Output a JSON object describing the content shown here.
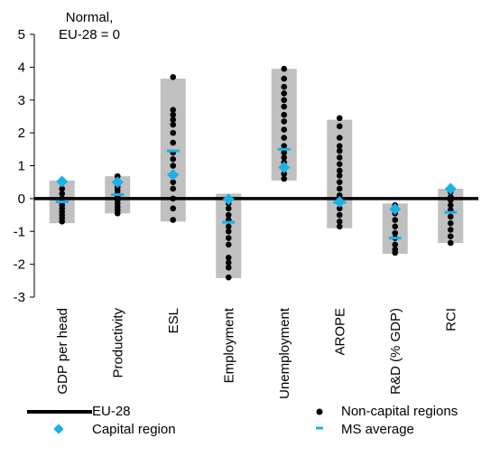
{
  "chart_data": {
    "type": "scatter",
    "title": "",
    "unit_label": [
      "Normal,",
      "EU-28 = 0"
    ],
    "ylim": [
      -3,
      5
    ],
    "yticks": [
      -3,
      -2,
      -1,
      0,
      1,
      2,
      3,
      4,
      5
    ],
    "categories": [
      "GDP per head",
      "Productivity",
      "ESL",
      "Employment",
      "Unemployment",
      "AROPE",
      "R&D (% GDP)",
      "RCI"
    ],
    "range": [
      {
        "min": -0.75,
        "max": 0.55
      },
      {
        "min": -0.45,
        "max": 0.68
      },
      {
        "min": -0.7,
        "max": 3.65
      },
      {
        "min": -2.42,
        "max": 0.15
      },
      {
        "min": 0.55,
        "max": 3.95
      },
      {
        "min": -0.9,
        "max": 2.4
      },
      {
        "min": -1.68,
        "max": -0.15
      },
      {
        "min": -1.35,
        "max": 0.3
      }
    ],
    "non_capital_regions": [
      [
        0.3,
        0.15,
        0.0,
        -0.1,
        -0.2,
        -0.3,
        -0.4,
        -0.5,
        -0.6,
        -0.7
      ],
      [
        0.68,
        0.55,
        0.45,
        0.35,
        0.25,
        0.15,
        0.05,
        -0.05,
        -0.15,
        -0.25,
        -0.35,
        -0.45
      ],
      [
        3.7,
        2.7,
        2.55,
        2.4,
        2.25,
        2.0,
        1.7,
        1.4,
        1.2,
        1.0,
        0.75,
        0.5,
        0.3,
        0.0,
        -0.3,
        -0.65
      ],
      [
        0.0,
        -0.15,
        -0.3,
        -0.5,
        -0.65,
        -0.85,
        -1.0,
        -1.2,
        -1.4,
        -1.8,
        -1.95,
        -2.1,
        -2.4
      ],
      [
        3.95,
        3.65,
        3.4,
        3.2,
        3.0,
        2.8,
        2.55,
        2.35,
        2.1,
        1.85,
        1.6,
        1.4,
        1.25,
        1.1,
        0.9,
        0.75,
        0.6
      ],
      [
        2.45,
        2.2,
        1.85,
        1.6,
        1.45,
        1.25,
        1.05,
        0.85,
        0.7,
        0.5,
        0.3,
        0.1,
        -0.1,
        -0.3,
        -0.5,
        -0.7,
        -0.85
      ],
      [
        -0.2,
        -0.45,
        -0.65,
        -0.85,
        -1.05,
        -1.2,
        -1.4,
        -1.55,
        -1.65
      ],
      [
        0.2,
        0.05,
        -0.05,
        -0.2,
        -0.35,
        -0.55,
        -0.75,
        -0.95,
        -1.15,
        -1.35
      ]
    ],
    "capital_region": [
      0.52,
      0.5,
      0.72,
      -0.02,
      0.95,
      -0.1,
      -0.32,
      0.3
    ],
    "ms_average": [
      -0.1,
      0.12,
      1.45,
      -0.72,
      1.5,
      -0.12,
      -1.2,
      -0.42
    ],
    "eu28_value": 0,
    "legend": [
      {
        "label": "EU-28",
        "symbol": "line"
      },
      {
        "label": "Non-capital regions",
        "symbol": "dot"
      },
      {
        "label": "Capital region",
        "symbol": "diamond"
      },
      {
        "label": "MS average",
        "symbol": "dash"
      }
    ],
    "colors": {
      "range": "#c0c0c0",
      "non_capital": "#000000",
      "capital": "#1ab0e8",
      "ms_average": "#1ab0e8",
      "eu28": "#000000"
    },
    "grid": false,
    "legend_position": "bottom"
  }
}
